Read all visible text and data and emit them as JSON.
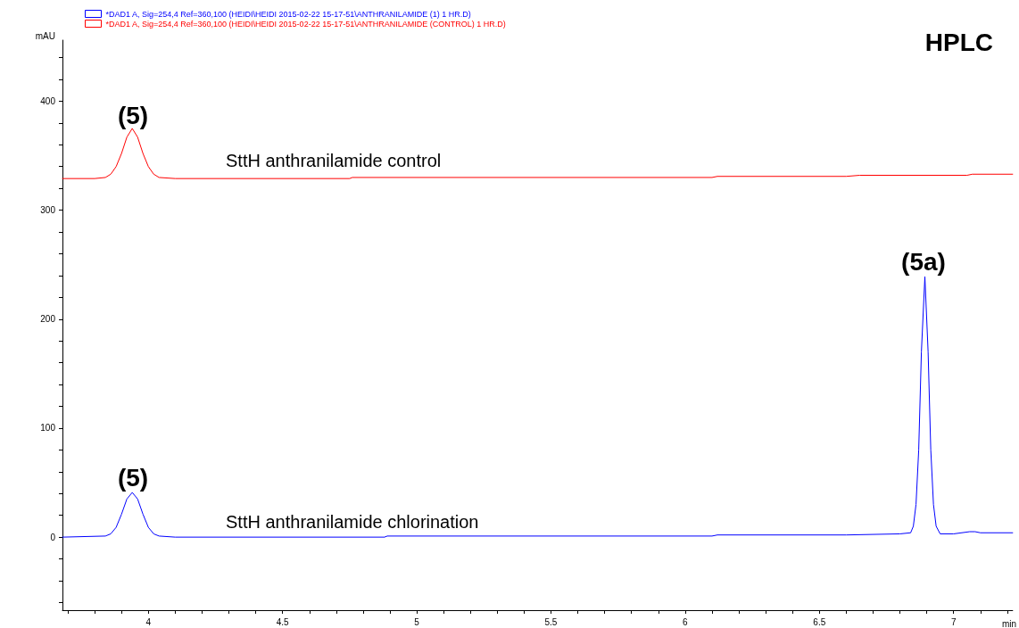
{
  "chart_data": {
    "type": "line",
    "title": "HPLC",
    "xlabel": "min",
    "ylabel": "mAU",
    "xlim": [
      3.68,
      7.22
    ],
    "xticks": [
      {
        "value": 3.7,
        "label": null
      },
      {
        "value": 3.8,
        "label": null
      },
      {
        "value": 3.9,
        "label": null
      },
      4,
      {
        "value": 4.1,
        "label": null
      },
      {
        "value": 4.2,
        "label": null
      },
      {
        "value": 4.3,
        "label": null
      },
      {
        "value": 4.4,
        "label": null
      },
      4.5,
      {
        "value": 4.6,
        "label": null
      },
      {
        "value": 4.7,
        "label": null
      },
      {
        "value": 4.8,
        "label": null
      },
      {
        "value": 4.9,
        "label": null
      },
      5,
      {
        "value": 5.1,
        "label": null
      },
      {
        "value": 5.2,
        "label": null
      },
      {
        "value": 5.3,
        "label": null
      },
      {
        "value": 5.4,
        "label": null
      },
      5.5,
      {
        "value": 5.6,
        "label": null
      },
      {
        "value": 5.7,
        "label": null
      },
      {
        "value": 5.8,
        "label": null
      },
      {
        "value": 5.9,
        "label": null
      },
      6,
      {
        "value": 6.1,
        "label": null
      },
      {
        "value": 6.2,
        "label": null
      },
      {
        "value": 6.3,
        "label": null
      },
      {
        "value": 6.4,
        "label": null
      },
      6.5,
      {
        "value": 6.6,
        "label": null
      },
      {
        "value": 6.7,
        "label": null
      },
      {
        "value": 6.8,
        "label": null
      },
      {
        "value": 6.9,
        "label": null
      },
      7,
      {
        "value": 7.1,
        "label": null
      },
      {
        "value": 7.2,
        "label": null
      }
    ],
    "ylim": [
      -67,
      456
    ],
    "yticks": [
      {
        "value": -60,
        "label": null
      },
      {
        "value": -40,
        "label": null
      },
      {
        "value": -20,
        "label": null
      },
      0,
      {
        "value": 20,
        "label": null
      },
      {
        "value": 40,
        "label": null
      },
      {
        "value": 60,
        "label": null
      },
      {
        "value": 80,
        "label": null
      },
      100,
      {
        "value": 120,
        "label": null
      },
      {
        "value": 140,
        "label": null
      },
      {
        "value": 160,
        "label": null
      },
      {
        "value": 180,
        "label": null
      },
      200,
      {
        "value": 220,
        "label": null
      },
      {
        "value": 240,
        "label": null
      },
      {
        "value": 260,
        "label": null
      },
      {
        "value": 280,
        "label": null
      },
      300,
      {
        "value": 320,
        "label": null
      },
      {
        "value": 340,
        "label": null
      },
      {
        "value": 360,
        "label": null
      },
      {
        "value": 380,
        "label": null
      },
      400,
      {
        "value": 420,
        "label": null
      },
      {
        "value": 440,
        "label": null
      }
    ],
    "grid": false,
    "legend": "top left",
    "marker": "none",
    "line_style": "solid",
    "series": [
      {
        "name": "*DAD1 A, Sig=254,4 Ref=360,100 (HEIDI\\HEIDI 2015-02-22 15-17-51\\ANTHRANILAMIDE (1) 1 HR.D)",
        "color": "#0000ff",
        "x": [
          3.68,
          3.84,
          3.86,
          3.88,
          3.9,
          3.92,
          3.94,
          3.96,
          3.98,
          4.0,
          4.02,
          4.04,
          4.1,
          4.88,
          4.89,
          6.1,
          6.12,
          6.6,
          6.8,
          6.84,
          6.85,
          6.86,
          6.87,
          6.88,
          6.893,
          6.905,
          6.915,
          6.925,
          6.935,
          6.95,
          7.0,
          7.06,
          7.08,
          7.1,
          7.22
        ],
        "values": [
          0,
          1,
          3,
          9,
          21,
          35,
          41,
          35,
          21,
          9,
          3,
          1,
          0,
          0,
          1,
          1,
          2,
          2,
          3,
          4,
          10,
          30,
          80,
          170,
          239,
          170,
          80,
          30,
          10,
          3,
          3,
          5,
          5,
          4,
          4
        ]
      },
      {
        "name": "*DAD1 A, Sig=254,4 Ref=360,100 (HEIDI\\HEIDI 2015-02-22 15-17-51\\ANTHRANILAMIDE (CONTROL) 1 HR.D)",
        "color": "#ff0000",
        "x": [
          3.68,
          3.8,
          3.84,
          3.86,
          3.88,
          3.9,
          3.92,
          3.94,
          3.96,
          3.98,
          4.0,
          4.02,
          4.04,
          4.1,
          4.75,
          4.76,
          6.1,
          6.12,
          6.6,
          6.65,
          7.05,
          7.07,
          7.22
        ],
        "values": [
          329,
          329,
          330,
          333,
          340,
          352,
          367,
          375,
          367,
          352,
          340,
          333,
          330,
          329,
          329,
          330,
          330,
          331,
          331,
          332,
          332,
          333,
          333
        ]
      }
    ],
    "annotations": [
      "(5)",
      "SttH anthranilamide control",
      "(5)",
      "SttH anthranilamide chlorination",
      "(5a)"
    ]
  }
}
